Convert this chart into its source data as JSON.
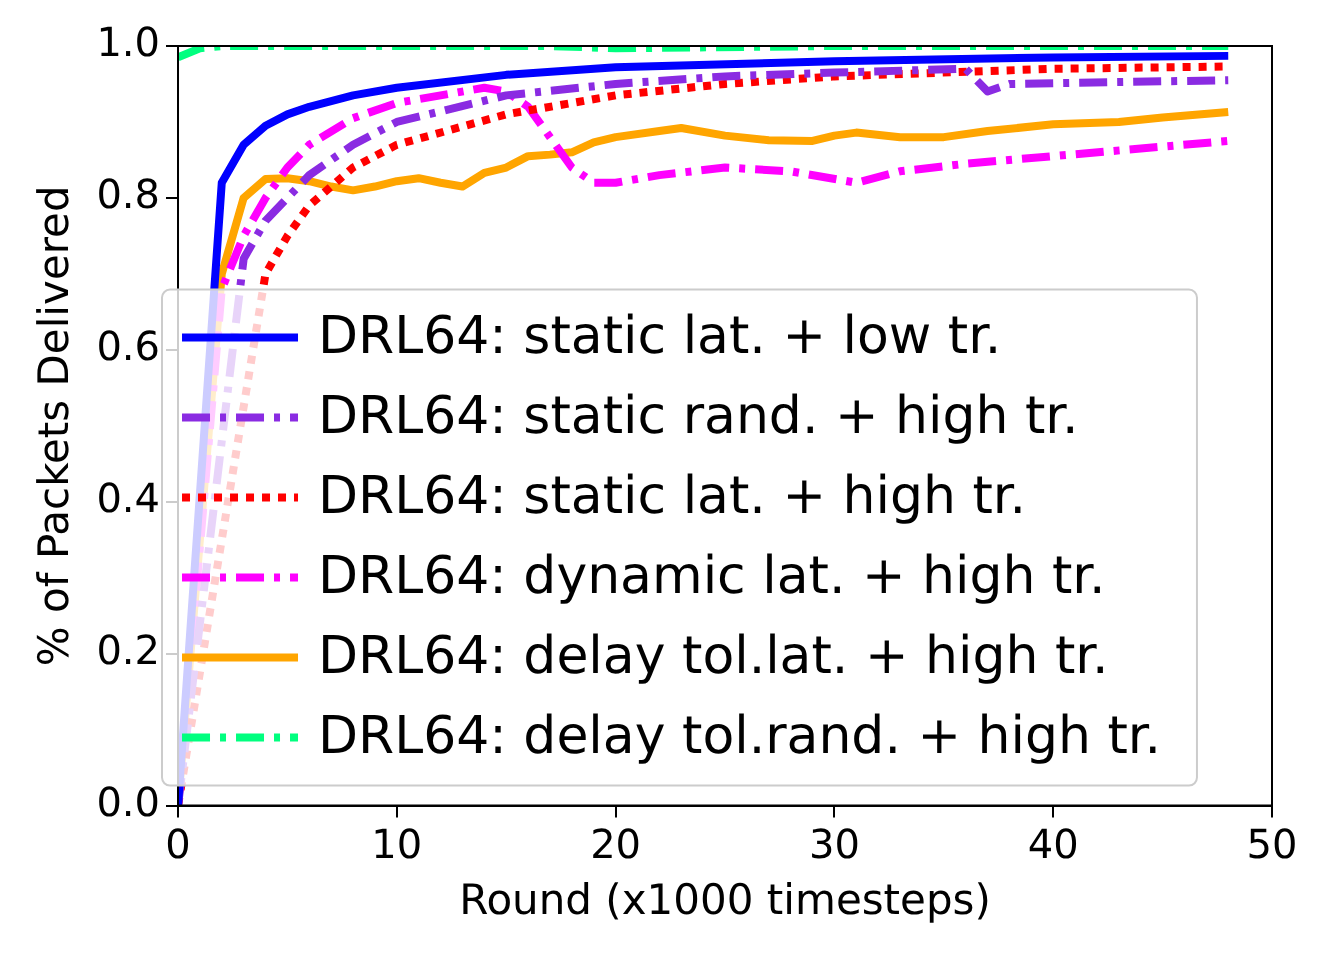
{
  "chart_data": {
    "type": "line",
    "xlabel": "Round (x1000 timesteps)",
    "ylabel": "% of Packets Delivered",
    "xlim": [
      0,
      50
    ],
    "xticks": [
      0,
      10,
      20,
      30,
      40,
      50
    ],
    "ylim": [
      0,
      1.0
    ],
    "yticks": [
      {
        "value": 0,
        "label": "0.0"
      },
      {
        "value": 0.2,
        "label": "0.2"
      },
      {
        "value": 0.4,
        "label": "0.4"
      },
      {
        "value": 0.6,
        "label": "0.6"
      },
      {
        "value": 0.8,
        "label": "0.8"
      },
      {
        "value": 1.0,
        "label": "1.0"
      }
    ],
    "grid": false,
    "legend": "lower left",
    "marker": "none",
    "series": [
      {
        "name": "DRL64: static lat. + low tr.",
        "color": "#0000ff",
        "line_style": "solid",
        "x": [
          0,
          2,
          3,
          4,
          5,
          6,
          8,
          10,
          15,
          20,
          30,
          40,
          48
        ],
        "values": [
          0,
          0.82,
          0.87,
          0.895,
          0.91,
          0.92,
          0.935,
          0.945,
          0.962,
          0.972,
          0.98,
          0.985,
          0.987
        ]
      },
      {
        "name": "DRL64: static rand. + high tr.",
        "color": "#8a2be2",
        "line_style": "dashed",
        "x": [
          0,
          3,
          4,
          5,
          6,
          8,
          10,
          15,
          20,
          25,
          30,
          36,
          37,
          38,
          48
        ],
        "values": [
          0,
          0.72,
          0.77,
          0.8,
          0.83,
          0.87,
          0.9,
          0.935,
          0.95,
          0.96,
          0.965,
          0.97,
          0.94,
          0.95,
          0.955
        ]
      },
      {
        "name": "DRL64: static lat. + high tr.",
        "color": "#ff0000",
        "line_style": "dotted",
        "x": [
          0,
          4,
          5,
          6,
          8,
          10,
          15,
          20,
          25,
          30,
          40,
          48
        ],
        "values": [
          0,
          0.7,
          0.75,
          0.79,
          0.84,
          0.87,
          0.91,
          0.935,
          0.95,
          0.96,
          0.97,
          0.973
        ]
      },
      {
        "name": "DRL64: dynamic lat. + high tr.",
        "color": "#ff00ff",
        "line_style": "dashed",
        "x": [
          0,
          2,
          3,
          4,
          5,
          6,
          8,
          10,
          12,
          14,
          15,
          16,
          17,
          18,
          19,
          20,
          22,
          25,
          28,
          31,
          33,
          36,
          40,
          44,
          48
        ],
        "values": [
          0,
          0.68,
          0.75,
          0.8,
          0.84,
          0.87,
          0.905,
          0.925,
          0.935,
          0.945,
          0.94,
          0.92,
          0.88,
          0.84,
          0.82,
          0.82,
          0.83,
          0.84,
          0.835,
          0.82,
          0.835,
          0.845,
          0.855,
          0.865,
          0.875
        ]
      },
      {
        "name": "DRL64: delay tol.lat. + high tr.",
        "color": "#ffa500",
        "line_style": "solid",
        "x": [
          0,
          2,
          3,
          4,
          5,
          6,
          7,
          8,
          9,
          10,
          11,
          12,
          13,
          14,
          15,
          16,
          17,
          18,
          19,
          20,
          22,
          23,
          25,
          27,
          29,
          30,
          31,
          33,
          35,
          37,
          40,
          43,
          45,
          48
        ],
        "values": [
          0,
          0.7,
          0.8,
          0.825,
          0.826,
          0.822,
          0.815,
          0.81,
          0.815,
          0.822,
          0.826,
          0.82,
          0.815,
          0.833,
          0.84,
          0.855,
          0.857,
          0.86,
          0.873,
          0.88,
          0.888,
          0.892,
          0.882,
          0.876,
          0.875,
          0.882,
          0.886,
          0.88,
          0.88,
          0.888,
          0.897,
          0.9,
          0.906,
          0.913
        ]
      },
      {
        "name": "DRL64: delay tol.rand. + high tr.",
        "color": "#00ff7f",
        "line_style": "dashed",
        "x": [
          0,
          1,
          2,
          10,
          17,
          20,
          30,
          40,
          48
        ],
        "values": [
          0.985,
          0.997,
          1.0,
          1.0,
          1.0,
          0.997,
          1.0,
          1.0,
          1.0
        ]
      }
    ]
  }
}
